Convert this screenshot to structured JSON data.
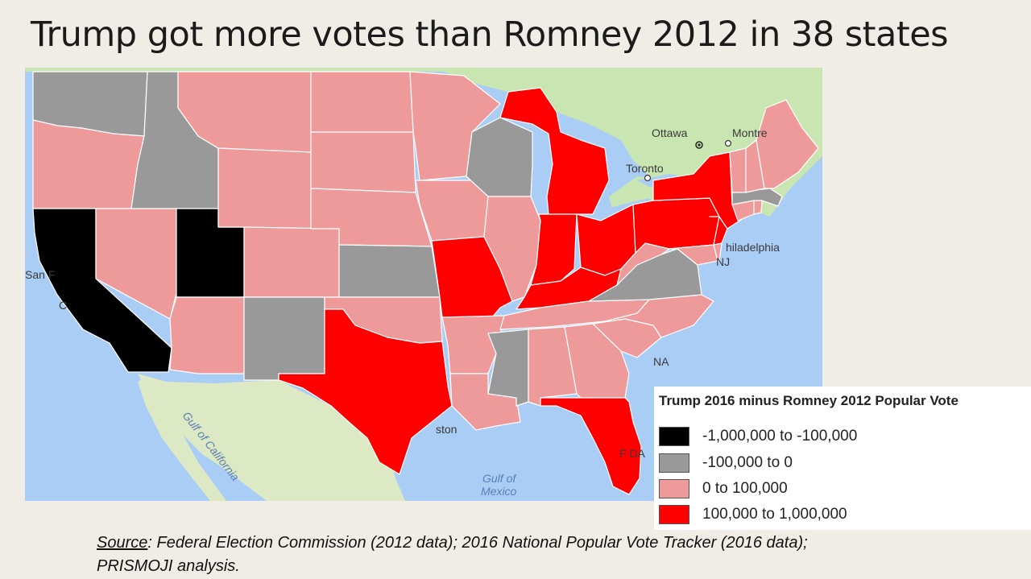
{
  "slide": {
    "title": "Trump got more votes than Romney 2012 in 38 states"
  },
  "map": {
    "basemap_labels": {
      "ottawa": "Ottawa",
      "montreal": "Montre",
      "toronto": "Toronto",
      "philadelphia": "hiladelphia",
      "nj": "NJ",
      "san_francisco": "San F",
      "ca_initial": "C",
      "na": "NA",
      "houston": "ston",
      "fl_partial": "F    DA",
      "gulf_of_california": "Gulf of California",
      "gulf_of_mexico_1": "Gulf of",
      "gulf_of_mexico_2": "Mexico"
    },
    "category_colors": {
      "-1,000,000 to -100,000": "#000000",
      "-100,000 to 0": "#999999",
      "0 to 100,000": "#ee9a9a",
      "100,000 to 1,000,000": "#ff0000"
    },
    "states": [
      {
        "state": "California",
        "category": "-1,000,000 to -100,000"
      },
      {
        "state": "Utah",
        "category": "-1,000,000 to -100,000"
      },
      {
        "state": "Washington",
        "category": "-100,000 to 0"
      },
      {
        "state": "Idaho",
        "category": "-100,000 to 0"
      },
      {
        "state": "Kansas",
        "category": "-100,000 to 0"
      },
      {
        "state": "New Mexico",
        "category": "-100,000 to 0"
      },
      {
        "state": "Wisconsin",
        "category": "-100,000 to 0"
      },
      {
        "state": "Mississippi",
        "category": "-100,000 to 0"
      },
      {
        "state": "Virginia",
        "category": "-100,000 to 0"
      },
      {
        "state": "Massachusetts",
        "category": "-100,000 to 0"
      },
      {
        "state": "Oregon",
        "category": "0 to 100,000"
      },
      {
        "state": "Nevada",
        "category": "0 to 100,000"
      },
      {
        "state": "Arizona",
        "category": "0 to 100,000"
      },
      {
        "state": "Montana",
        "category": "0 to 100,000"
      },
      {
        "state": "Wyoming",
        "category": "0 to 100,000"
      },
      {
        "state": "Colorado",
        "category": "0 to 100,000"
      },
      {
        "state": "North Dakota",
        "category": "0 to 100,000"
      },
      {
        "state": "South Dakota",
        "category": "0 to 100,000"
      },
      {
        "state": "Nebraska",
        "category": "0 to 100,000"
      },
      {
        "state": "Oklahoma",
        "category": "0 to 100,000"
      },
      {
        "state": "Minnesota",
        "category": "0 to 100,000"
      },
      {
        "state": "Iowa",
        "category": "0 to 100,000"
      },
      {
        "state": "Arkansas",
        "category": "0 to 100,000"
      },
      {
        "state": "Louisiana",
        "category": "0 to 100,000"
      },
      {
        "state": "Illinois",
        "category": "0 to 100,000"
      },
      {
        "state": "Tennessee",
        "category": "0 to 100,000"
      },
      {
        "state": "Alabama",
        "category": "0 to 100,000"
      },
      {
        "state": "Georgia",
        "category": "0 to 100,000"
      },
      {
        "state": "South Carolina",
        "category": "0 to 100,000"
      },
      {
        "state": "North Carolina",
        "category": "0 to 100,000"
      },
      {
        "state": "West Virginia",
        "category": "0 to 100,000"
      },
      {
        "state": "Maryland",
        "category": "0 to 100,000"
      },
      {
        "state": "Delaware",
        "category": "0 to 100,000"
      },
      {
        "state": "Maine",
        "category": "0 to 100,000"
      },
      {
        "state": "New Hampshire",
        "category": "0 to 100,000"
      },
      {
        "state": "Vermont",
        "category": "0 to 100,000"
      },
      {
        "state": "Connecticut",
        "category": "0 to 100,000"
      },
      {
        "state": "Rhode Island",
        "category": "0 to 100,000"
      },
      {
        "state": "Texas",
        "category": "100,000 to 1,000,000"
      },
      {
        "state": "Missouri",
        "category": "100,000 to 1,000,000"
      },
      {
        "state": "Michigan",
        "category": "100,000 to 1,000,000"
      },
      {
        "state": "Indiana",
        "category": "100,000 to 1,000,000"
      },
      {
        "state": "Ohio",
        "category": "100,000 to 1,000,000"
      },
      {
        "state": "Kentucky",
        "category": "100,000 to 1,000,000"
      },
      {
        "state": "Pennsylvania",
        "category": "100,000 to 1,000,000"
      },
      {
        "state": "New York",
        "category": "100,000 to 1,000,000"
      },
      {
        "state": "New Jersey",
        "category": "100,000 to 1,000,000"
      },
      {
        "state": "Florida",
        "category": "100,000 to 1,000,000"
      }
    ]
  },
  "legend": {
    "title": "Trump 2016 minus Romney 2012 Popular Vote",
    "items": [
      {
        "label": "-1,000,000 to -100,000",
        "color": "#000000"
      },
      {
        "label": "-100,000 to 0",
        "color": "#999999"
      },
      {
        "label": "0 to 100,000",
        "color": "#ee9a9a"
      },
      {
        "label": "100,000 to 1,000,000",
        "color": "#ff0000"
      }
    ]
  },
  "source": {
    "label": "Source",
    "text": ": Federal Election Commission (2012 data); 2016 National Popular Vote Tracker (2016 data);",
    "line2": "PRISMOJI analysis."
  }
}
